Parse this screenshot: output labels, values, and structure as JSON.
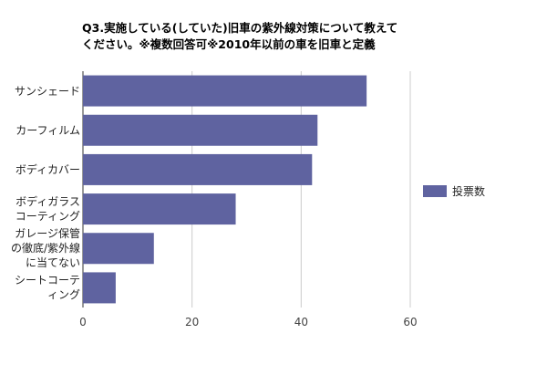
{
  "chart_data": {
    "type": "bar",
    "orientation": "horizontal",
    "title_lines": [
      "Q3.実施している(していた)旧車の紫外線対策について教えて",
      "ください。※複数回答可※2010年以前の車を旧車と定義"
    ],
    "categories": [
      [
        "サンシェード"
      ],
      [
        "カーフィルム"
      ],
      [
        "ボディカバー"
      ],
      [
        "ボディガラス",
        "コーティング"
      ],
      [
        "ガレージ保管",
        "の徹底/紫外線",
        "に当てない"
      ],
      [
        "シートコーテ",
        "ィング"
      ]
    ],
    "series": [
      {
        "name": "投票数",
        "values": [
          52,
          43,
          42,
          28,
          13,
          6
        ]
      }
    ],
    "xlim": [
      0,
      70
    ],
    "x_ticks": [
      "0",
      "20",
      "40",
      "60"
    ],
    "x_tick_values": [
      0,
      20,
      40,
      60
    ],
    "grid": true,
    "legend_position": "right",
    "bar_color": "#5f63a0"
  }
}
